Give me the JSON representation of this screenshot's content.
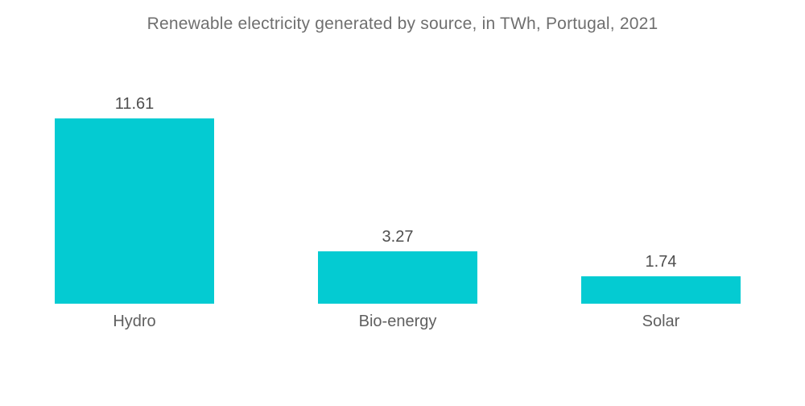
{
  "chart_data": {
    "type": "bar",
    "title": "Renewable electricity generated by source, in TWh, Portugal, 2021",
    "categories": [
      "Hydro",
      "Bio-energy",
      "Solar"
    ],
    "values": [
      11.61,
      3.27,
      1.74
    ],
    "value_labels": [
      "11.61",
      "3.27",
      "1.74"
    ],
    "xlabel": "",
    "ylabel": "",
    "ylim": [
      0,
      11.61
    ],
    "grid": false,
    "legend": false,
    "data_labels_position": "above-bars",
    "colors": {
      "bar": "#04CBD2",
      "title_text": "#6f6f6f",
      "value_text": "#4f4f4f",
      "category_text": "#5f5f5f",
      "background": "#ffffff"
    }
  }
}
